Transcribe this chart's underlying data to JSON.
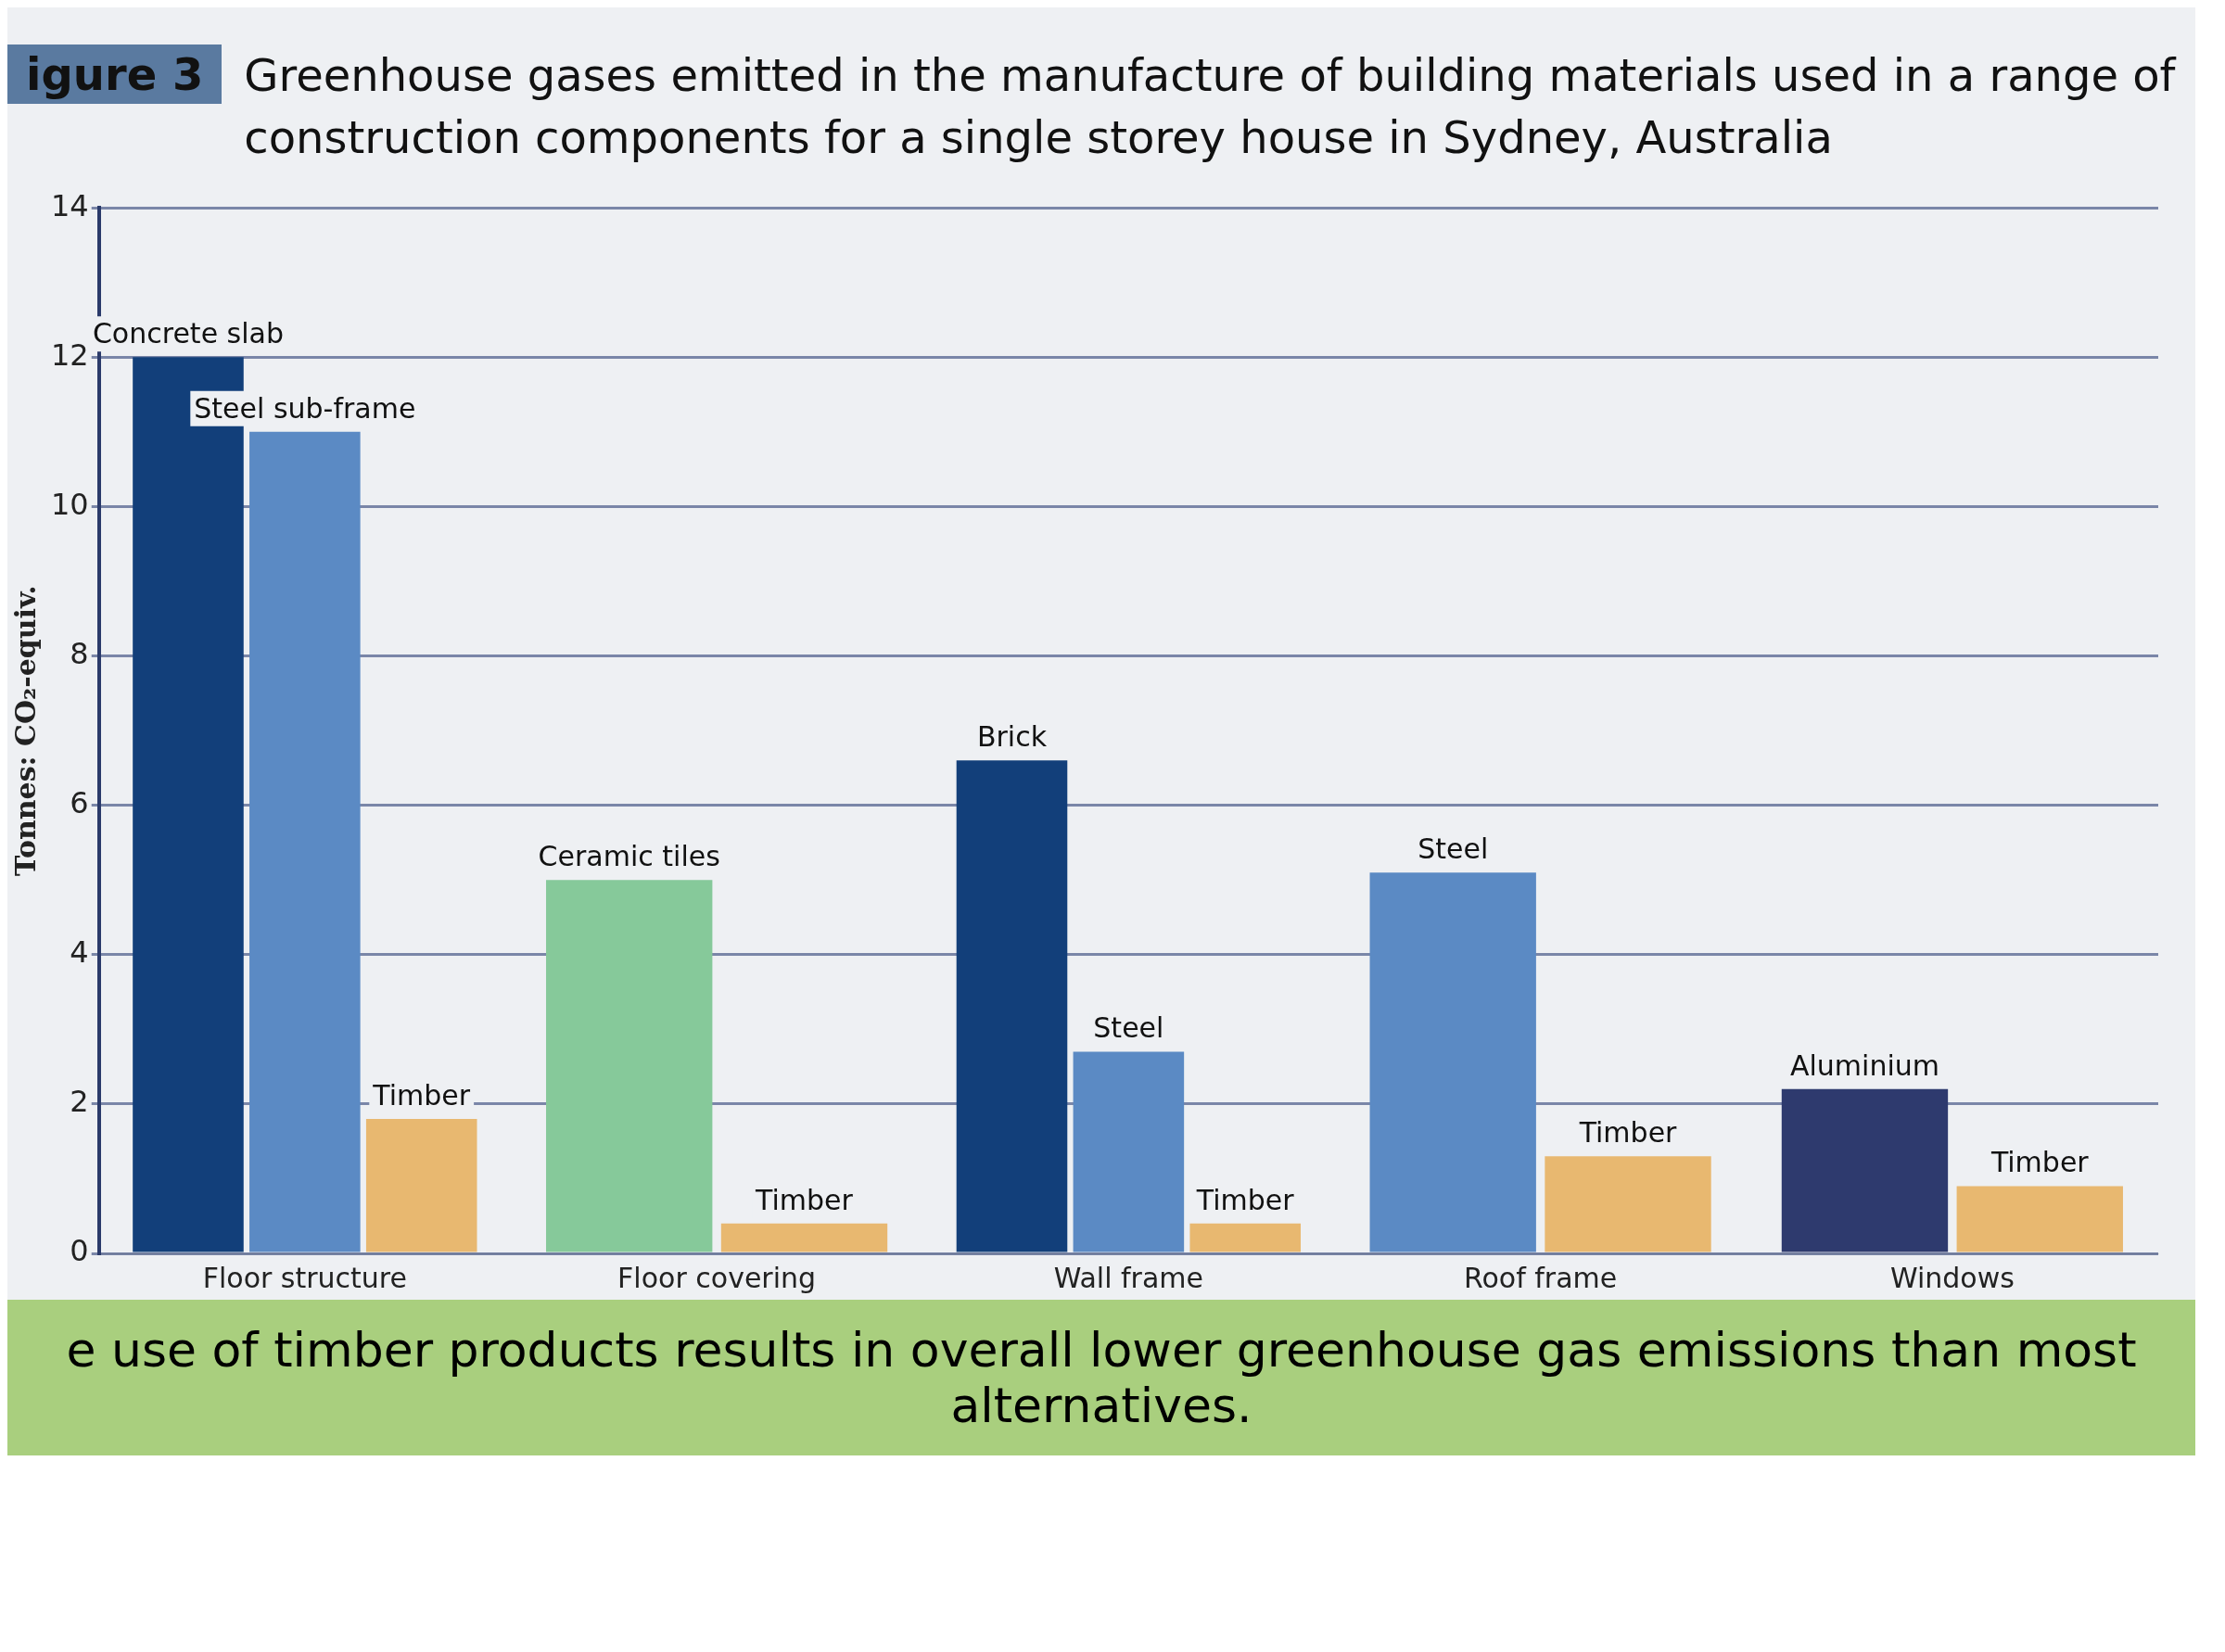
{
  "chart_data": {
    "type": "bar",
    "title": "Greenhouse gases emitted in the manufacture of building materials used in a range of construction components for a single storey house in Sydney, Australia",
    "ylabel": "Tonnes: CO₂-equiv.",
    "categories": [
      "Floor structure",
      "Floor covering",
      "Wall frame",
      "Roof frame",
      "Windows"
    ],
    "series": [
      {
        "color": "#123f7a",
        "values": [
          12,
          null,
          6.6,
          null,
          null
        ],
        "value_labels": [
          "Concrete slab",
          null,
          "Brick",
          null,
          null
        ]
      },
      {
        "color": "#5b8ac4",
        "values": [
          11,
          null,
          2.7,
          5.1,
          null
        ],
        "value_labels": [
          "Steel sub-frame",
          null,
          "Steel",
          "Steel",
          null
        ]
      },
      {
        "color": "#86c99a",
        "values": [
          null,
          5,
          null,
          null,
          null
        ],
        "value_labels": [
          null,
          "Ceramic tiles",
          null,
          null,
          null
        ]
      },
      {
        "color": "#2e3a6e",
        "values": [
          null,
          null,
          null,
          null,
          2.2
        ],
        "value_labels": [
          null,
          null,
          null,
          null,
          "Aluminium"
        ]
      },
      {
        "color": "#e8b870",
        "values": [
          1.8,
          0.4,
          0.4,
          1.3,
          0.9
        ],
        "value_labels": [
          "Timber",
          "Timber",
          "Timber",
          "Timber",
          "Timber"
        ]
      }
    ],
    "ylim": [
      0,
      14
    ],
    "yticks": [
      0,
      2,
      4,
      6,
      8,
      10,
      12,
      14
    ],
    "grid": "y",
    "legend": false,
    "annotations": [
      "igure 3",
      "e use of timber products results in overall lower greenhouse gas emissions than most alternatives."
    ]
  }
}
